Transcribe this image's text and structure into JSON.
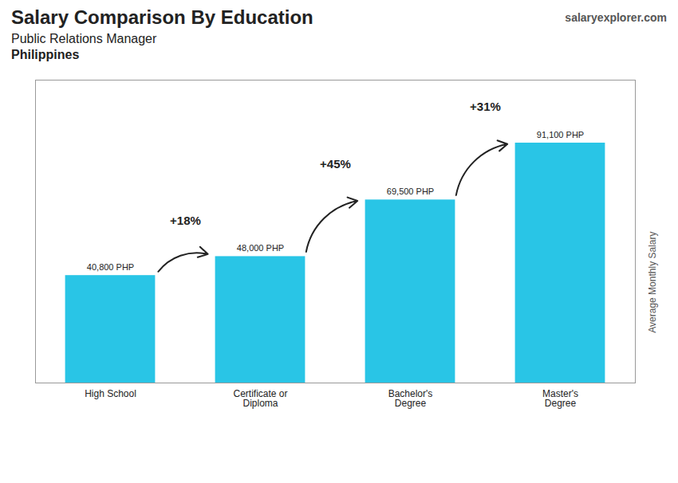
{
  "chart_data": {
    "type": "bar",
    "title": "Salary Comparison By Education",
    "subtitle": [
      "Public Relations Manager",
      "Philippines"
    ],
    "source": "salaryexplorer.com",
    "y_label": "Average Monthly Salary",
    "categories": [
      "High School",
      "Certificate or\nDiploma",
      "Bachelor's\nDegree",
      "Master's\nDegree"
    ],
    "values": [
      40800,
      48000,
      69500,
      91100
    ],
    "value_labels": [
      "40,800 PHP",
      "48,000 PHP",
      "69,500 PHP",
      "91,100 PHP"
    ],
    "data_labels": true,
    "annotations": [
      {
        "value": 18,
        "label": "+18%"
      },
      {
        "value": 45,
        "label": "+45%"
      },
      {
        "value": 31,
        "label": "+31%"
      }
    ],
    "color": "#29c5e6",
    "ylim": [
      0,
      115000
    ],
    "tick_labels": "x",
    "grid": false
  }
}
